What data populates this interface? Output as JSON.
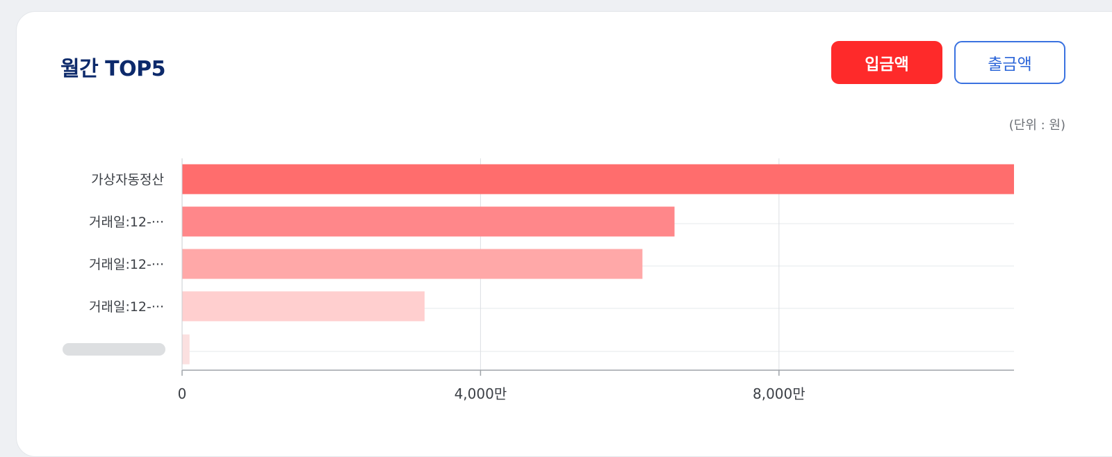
{
  "header": {
    "title": "월간 TOP5",
    "buttons": {
      "deposit_label": "입금액",
      "withdraw_label": "출금액"
    }
  },
  "unit_note": "(단위 : 원)",
  "colors": {
    "active_button": "#fe2a2a",
    "outline_button": "#3a72e0",
    "bar_shades": [
      "#ff6d6d",
      "#ff878a",
      "#ffa8a8",
      "#ffcfcf",
      "#fbe0e0"
    ]
  },
  "chart_data": {
    "type": "bar",
    "orientation": "horizontal",
    "categories": [
      "가상자동정산",
      "거래일:12-···",
      "거래일:12-···",
      "거래일:12-···",
      ""
    ],
    "values": [
      11150,
      6600,
      6170,
      3250,
      100
    ],
    "xlim": [
      0,
      11150
    ],
    "x_ticks": [
      0,
      4000,
      8000
    ],
    "x_tick_labels": [
      "0",
      "4,000만",
      "8,000만"
    ],
    "grid": true
  }
}
